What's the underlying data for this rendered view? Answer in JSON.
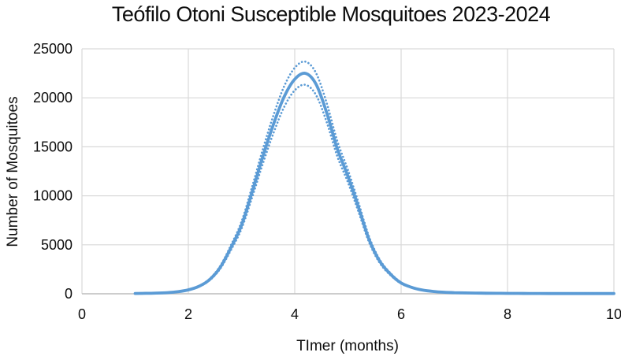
{
  "chart_data": {
    "type": "line",
    "title": "Teófilo Otoni Susceptible Mosquitoes 2023-2024",
    "xlabel": "TImer (months)",
    "ylabel": "Number of Mosquitoes",
    "xlim": [
      0,
      10
    ],
    "ylim": [
      0,
      25000
    ],
    "x_ticks": [
      0,
      2,
      4,
      6,
      8,
      10
    ],
    "y_ticks": [
      0,
      5000,
      10000,
      15000,
      20000,
      25000
    ],
    "grid": true,
    "legend": false,
    "background": "#FFFFFF",
    "colors": {
      "series_line": "#5B9BD5",
      "gridline": "#D9D9D9",
      "axis_line": "#BFBFBF",
      "text": "#0D0D0D"
    },
    "x": [
      1.0,
      1.2,
      1.4,
      1.6,
      1.8,
      2.0,
      2.2,
      2.4,
      2.6,
      2.8,
      3.0,
      3.2,
      3.4,
      3.6,
      3.8,
      4.0,
      4.2,
      4.4,
      4.6,
      4.8,
      5.0,
      5.2,
      5.4,
      5.6,
      5.8,
      6.0,
      6.2,
      6.4,
      6.6,
      6.8,
      7.0,
      7.2,
      7.4,
      7.6,
      7.8,
      8.0,
      8.2,
      8.4,
      8.6,
      8.8,
      9.0,
      9.2,
      9.4,
      9.6,
      9.8,
      10.0
    ],
    "series": [
      {
        "name": "susceptible-mean",
        "style": "solid",
        "values": [
          30,
          45,
          70,
          115,
          210,
          400,
          760,
          1450,
          2700,
          4700,
          7000,
          10400,
          14000,
          17300,
          20100,
          21900,
          22500,
          21400,
          18500,
          14800,
          12000,
          8800,
          5500,
          3300,
          2000,
          1100,
          650,
          380,
          240,
          160,
          115,
          90,
          72,
          60,
          50,
          44,
          38,
          34,
          31,
          28,
          26,
          25,
          24,
          23,
          22,
          21
        ]
      },
      {
        "name": "upper-band",
        "style": "dotted",
        "values": [
          32,
          47,
          74,
          121,
          221,
          421,
          800,
          1527,
          2843,
          4949,
          7371,
          10951,
          14742,
          18217,
          21165,
          23061,
          23693,
          22534,
          19481,
          15584,
          12636,
          9266,
          5792,
          3475,
          2106,
          1158,
          684,
          400,
          253,
          168,
          121,
          95,
          76,
          63,
          53,
          46,
          40,
          36,
          33,
          29,
          27,
          26,
          25,
          24,
          23,
          22
        ]
      },
      {
        "name": "lower-band",
        "style": "dotted",
        "values": [
          28,
          43,
          66,
          109,
          199,
          379,
          720,
          1375,
          2560,
          4456,
          6636,
          9859,
          13272,
          16400,
          19055,
          20761,
          21330,
          20287,
          17538,
          14030,
          11376,
          8342,
          5214,
          3128,
          1896,
          1043,
          616,
          360,
          228,
          152,
          109,
          85,
          68,
          57,
          47,
          42,
          36,
          32,
          29,
          27,
          25,
          24,
          23,
          22,
          21,
          20
        ]
      }
    ]
  }
}
